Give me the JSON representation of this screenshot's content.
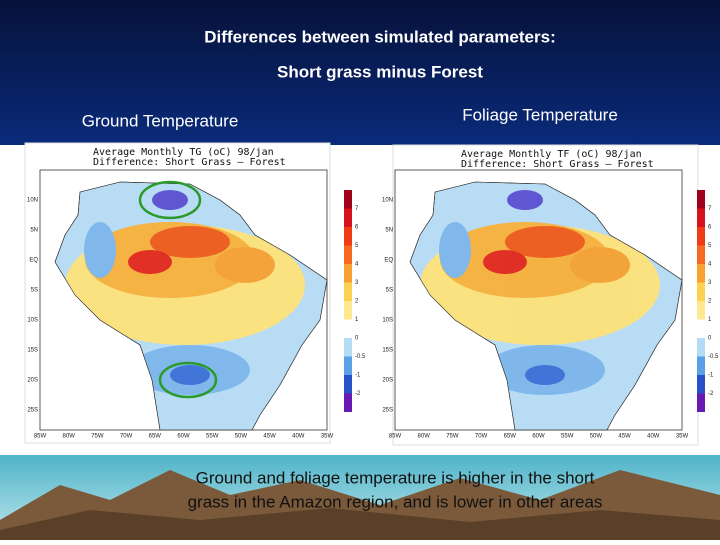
{
  "slide": {
    "title": "Differences between simulated parameters:",
    "subtitle": "Short grass minus Forest",
    "caption": [
      "Ground and foliage temperature is higher in the short",
      "grass in the Amazon region, and is lower in other areas"
    ]
  },
  "panels": [
    {
      "label": "Ground Temperature",
      "map_title": "Average Monthly TG (oC) 98/jan",
      "map_subtitle": "Difference: Short Grass – Forest",
      "colorbar": [
        "7",
        "6",
        "5",
        "4",
        "3",
        "2",
        "1",
        "0",
        "-0.5",
        "-1",
        "-2"
      ],
      "lat_labels": [
        "10N",
        "5N",
        "EQ",
        "5S",
        "10S",
        "15S",
        "20S",
        "25S"
      ],
      "lon_labels": [
        "85W",
        "80W",
        "75W",
        "70W",
        "65W",
        "60W",
        "55W",
        "50W",
        "45W",
        "40W",
        "35W"
      ]
    },
    {
      "label": "Foliage Temperature",
      "map_title": "Average Monthly TF (oC) 98/jan",
      "map_subtitle": "Difference: Short Grass – Forest",
      "colorbar": [
        "7",
        "6",
        "5",
        "4",
        "3",
        "2",
        "1",
        "0",
        "-0.5",
        "-1",
        "-2"
      ],
      "lat_labels": [
        "10N",
        "5N",
        "EQ",
        "5S",
        "10S",
        "15S",
        "20S",
        "25S"
      ],
      "lon_labels": [
        "85W",
        "80W",
        "75W",
        "70W",
        "65W",
        "60W",
        "55W",
        "50W",
        "45W",
        "40W",
        "35W"
      ]
    }
  ]
}
